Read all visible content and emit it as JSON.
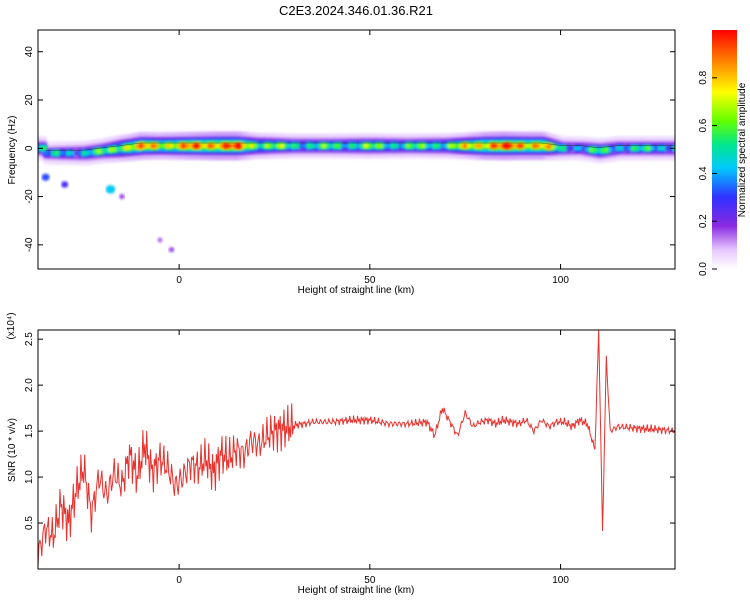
{
  "title": "C2E3.2024.346.01.36.R21",
  "colors": {
    "signal_line": "#e8322e",
    "axis": "#000000",
    "ridge_core": "#e8283c",
    "colormap": [
      "#ffffff",
      "#e6c8ff",
      "#8a2be2",
      "#3030ff",
      "#00c8ff",
      "#00e68c",
      "#64ff00",
      "#ffff00",
      "#ff8c00",
      "#ff0000"
    ]
  },
  "chart_data": [
    {
      "type": "heatmap",
      "xlabel": "Height of straight line (km)",
      "ylabel": "Frequency (Hz)",
      "xlim": [
        -37,
        130
      ],
      "ylim": [
        -50,
        49
      ],
      "xticks": [
        0,
        50,
        100
      ],
      "yticks": [
        -40,
        -20,
        0,
        20,
        40
      ],
      "ridge": [
        {
          "x": -35,
          "f": -2,
          "amp": 0.4
        },
        {
          "x": -30,
          "f": -2,
          "amp": 0.45
        },
        {
          "x": -25,
          "f": -2,
          "amp": 0.5
        },
        {
          "x": -20,
          "f": -1,
          "amp": 0.55
        },
        {
          "x": -15,
          "f": 0,
          "amp": 0.75
        },
        {
          "x": -10,
          "f": 1,
          "amp": 0.85
        },
        {
          "x": -5,
          "f": 1,
          "amp": 0.8
        },
        {
          "x": 0,
          "f": 1,
          "amp": 0.85
        },
        {
          "x": 5,
          "f": 1,
          "amp": 0.9
        },
        {
          "x": 10,
          "f": 1,
          "amp": 0.95
        },
        {
          "x": 15,
          "f": 1,
          "amp": 0.95
        },
        {
          "x": 20,
          "f": 1,
          "amp": 0.7
        },
        {
          "x": 30,
          "f": 1,
          "amp": 0.55
        },
        {
          "x": 40,
          "f": 1,
          "amp": 0.55
        },
        {
          "x": 50,
          "f": 1,
          "amp": 0.6
        },
        {
          "x": 60,
          "f": 1,
          "amp": 0.55
        },
        {
          "x": 70,
          "f": 1,
          "amp": 0.6
        },
        {
          "x": 80,
          "f": 1,
          "amp": 0.9
        },
        {
          "x": 85,
          "f": 1,
          "amp": 0.95
        },
        {
          "x": 90,
          "f": 1,
          "amp": 0.9
        },
        {
          "x": 95,
          "f": 1,
          "amp": 0.9
        },
        {
          "x": 100,
          "f": 0,
          "amp": 0.5
        },
        {
          "x": 105,
          "f": 0,
          "amp": 0.45
        },
        {
          "x": 110,
          "f": -1,
          "amp": 0.55
        },
        {
          "x": 115,
          "f": 0,
          "amp": 0.5
        },
        {
          "x": 120,
          "f": 0,
          "amp": 0.5
        },
        {
          "x": 125,
          "f": 0,
          "amp": 0.5
        },
        {
          "x": 130,
          "f": 0,
          "amp": 0.5
        }
      ],
      "patches": [
        {
          "x": -18,
          "f": -17,
          "amp": 0.35
        },
        {
          "x": -30,
          "f": -15,
          "amp": 0.2
        },
        {
          "x": -35,
          "f": -12,
          "amp": 0.25
        },
        {
          "x": -2,
          "f": -42,
          "amp": 0.1
        },
        {
          "x": -5,
          "f": -38,
          "amp": 0.08
        },
        {
          "x": -15,
          "f": -20,
          "amp": 0.1
        }
      ],
      "colorbar": {
        "label": "Normalized spectral amplitude",
        "range": [
          0,
          1
        ],
        "ticks": [
          "0.0",
          "0.2",
          "0.4",
          "0.6",
          "0.8"
        ]
      }
    },
    {
      "type": "line",
      "xlabel": "Height of straight line (km)",
      "ylabel": "SNR (10 * v/v)",
      "multiplier": "(x10⁴)",
      "xlim": [
        -37,
        130
      ],
      "ylim": [
        0,
        2.6
      ],
      "xticks": [
        0,
        50,
        100
      ],
      "yticks": [
        0.5,
        1.0,
        1.5,
        2.0,
        2.5
      ],
      "series": [
        {
          "x": [
            -37,
            -35,
            -33,
            -31,
            -29,
            -27,
            -25,
            -23,
            -21,
            -19,
            -17,
            -15,
            -13,
            -11,
            -9,
            -7,
            -5,
            -3,
            -1,
            1,
            3,
            5,
            7,
            9,
            11,
            13,
            15,
            17,
            19,
            21,
            23,
            25,
            27,
            29,
            31,
            33,
            35,
            40,
            45,
            50,
            55,
            60,
            65,
            67,
            69,
            71,
            73,
            75,
            77,
            79,
            81,
            83,
            85,
            87,
            89,
            91,
            93,
            95,
            97,
            99,
            101,
            103,
            105,
            107,
            109,
            110,
            111,
            112,
            113,
            115,
            120,
            125,
            130
          ],
          "y": [
            0.15,
            0.45,
            0.35,
            0.7,
            0.5,
            0.85,
            1.1,
            0.6,
            1.0,
            0.8,
            1.05,
            0.9,
            1.25,
            1.0,
            1.35,
            1.05,
            1.2,
            1.1,
            0.9,
            1.0,
            1.15,
            1.1,
            1.2,
            1.05,
            1.25,
            1.2,
            1.3,
            1.25,
            1.4,
            1.35,
            1.45,
            1.5,
            1.52,
            1.55,
            1.57,
            1.58,
            1.6,
            1.6,
            1.62,
            1.62,
            1.58,
            1.58,
            1.6,
            1.45,
            1.75,
            1.6,
            1.45,
            1.7,
            1.55,
            1.6,
            1.62,
            1.58,
            1.62,
            1.6,
            1.58,
            1.62,
            1.5,
            1.62,
            1.55,
            1.6,
            1.6,
            1.55,
            1.62,
            1.58,
            1.3,
            2.6,
            0.4,
            2.3,
            1.5,
            1.55,
            1.53,
            1.52,
            1.5
          ]
        }
      ]
    }
  ]
}
